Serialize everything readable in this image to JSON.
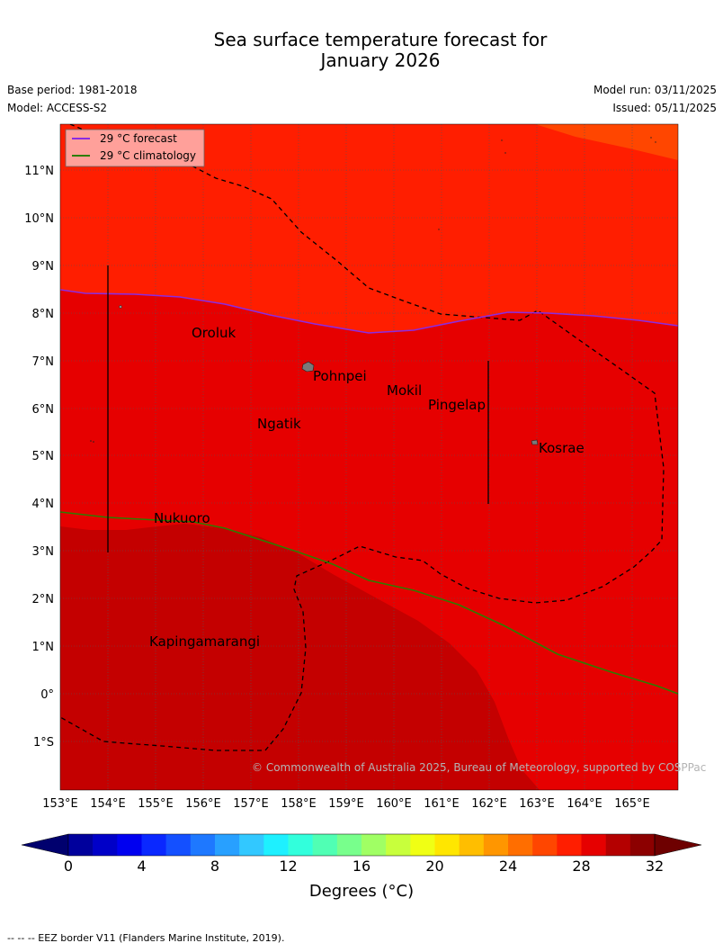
{
  "title_line1": "Sea surface temperature forecast for",
  "title_line2": "January 2026",
  "base_period": "Base period: 1981-2018",
  "model": "Model: ACCESS-S2",
  "model_run": "Model run: 03/11/2025",
  "issued": "Issued: 05/11/2025",
  "legend": {
    "forecast": "29 °C  forecast",
    "climatology": "29 °C  climatology",
    "forecast_color": "#8b2be2",
    "climatology_color": "#2e7d00"
  },
  "lat_labels": [
    "11°N",
    "10°N",
    "9°N",
    "8°N",
    "7°N",
    "6°N",
    "5°N",
    "4°N",
    "3°N",
    "2°N",
    "1°N",
    "0°",
    "1°S"
  ],
  "lon_labels": [
    "153°E",
    "154°E",
    "155°E",
    "156°E",
    "157°E",
    "158°E",
    "159°E",
    "160°E",
    "161°E",
    "162°E",
    "163°E",
    "164°E",
    "165°E"
  ],
  "places": [
    "Oroluk",
    "Pohnpei",
    "Mokil",
    "Pingelap",
    "Ngatik",
    "Kosrae",
    "Nukuoro",
    "Kapingamarangi"
  ],
  "copyright": "© Commonwealth of Australia 2025, Bureau of Meteorology, supported by COSPPac",
  "colorbar": {
    "ticks": [
      "0",
      "4",
      "8",
      "12",
      "16",
      "20",
      "24",
      "28",
      "32"
    ],
    "label": "Degrees (°C)",
    "colors": [
      "#00009c",
      "#0000c8",
      "#0000f0",
      "#0a28ff",
      "#1450ff",
      "#1e78ff",
      "#28a0ff",
      "#32c8ff",
      "#1ef0ff",
      "#32ffdc",
      "#50ffb4",
      "#78ff8c",
      "#a0ff64",
      "#c8ff3c",
      "#f0ff14",
      "#ffe600",
      "#ffbe00",
      "#ff9600",
      "#ff6e00",
      "#ff4600",
      "#ff1e00",
      "#e60000",
      "#b40000",
      "#8c0000"
    ],
    "low_extend_color": "#00006e",
    "high_extend_color": "#6e0000"
  },
  "sst_colors": {
    "warm_28_29": "#ff1e00",
    "warm_29_30": "#e60000",
    "warm_30_31": "#c40000",
    "warm_27_28": "#ff4600"
  },
  "footer": "--  --  -- EEZ border V11 (Flanders Marine Institute, 2019)."
}
